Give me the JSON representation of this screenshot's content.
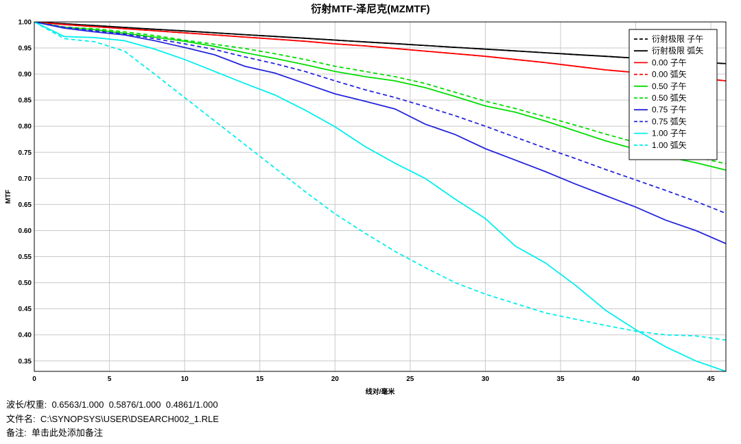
{
  "chart_data": {
    "type": "line",
    "title": "衍射MTF-泽尼克(MZMTF)",
    "xlabel": "线对/毫米",
    "ylabel": "MTF",
    "xlim": [
      0,
      46
    ],
    "ylim": [
      0.33,
      1.0
    ],
    "xticks": [
      0,
      5,
      10,
      15,
      20,
      25,
      30,
      35,
      40,
      45
    ],
    "yticks": [
      1.0,
      0.95,
      0.9,
      0.85,
      0.8,
      0.75,
      0.7,
      0.65,
      0.6,
      0.55,
      0.5,
      0.45,
      0.4,
      0.35
    ],
    "ytick_labels": [
      "1.00",
      "0.95",
      "0.90",
      "0.85",
      "0.80",
      "0.75",
      "0.70",
      "0.65",
      "0.60",
      "0.55",
      "0.50",
      "0.45",
      "0.40",
      "0.35"
    ],
    "grid": true,
    "legend_position": "top-right",
    "x": [
      0,
      2,
      4,
      6,
      8,
      10,
      12,
      14,
      16,
      18,
      20,
      22,
      24,
      26,
      28,
      30,
      32,
      34,
      36,
      38,
      40,
      42,
      44,
      46
    ],
    "series": [
      {
        "name": "衍射极限 子午",
        "color": "#000000",
        "dash": true,
        "values": [
          1.0,
          0.9965,
          0.993,
          0.9895,
          0.986,
          0.9826,
          0.9791,
          0.9756,
          0.9722,
          0.9687,
          0.9652,
          0.9617,
          0.9583,
          0.9548,
          0.9513,
          0.9478,
          0.9444,
          0.9409,
          0.9374,
          0.934,
          0.9305,
          0.927,
          0.9235,
          0.92
        ]
      },
      {
        "name": "衍射极限 弧矢",
        "color": "#000000",
        "dash": false,
        "values": [
          1.0,
          0.9965,
          0.993,
          0.9895,
          0.986,
          0.9826,
          0.9791,
          0.9756,
          0.9722,
          0.9687,
          0.9652,
          0.9617,
          0.9583,
          0.9548,
          0.9513,
          0.9478,
          0.9444,
          0.9409,
          0.9374,
          0.934,
          0.9305,
          0.927,
          0.9235,
          0.92
        ]
      },
      {
        "name": "0.00 子午",
        "color": "#ff0000",
        "dash": false,
        "values": [
          1.0,
          0.995,
          0.991,
          0.987,
          0.983,
          0.979,
          0.975,
          0.971,
          0.967,
          0.963,
          0.958,
          0.954,
          0.949,
          0.944,
          0.939,
          0.934,
          0.928,
          0.922,
          0.915,
          0.908,
          0.903,
          0.898,
          0.893,
          0.887
        ]
      },
      {
        "name": "0.00 弧矢",
        "color": "#ff0000",
        "dash": true,
        "values": [
          1.0,
          0.995,
          0.991,
          0.987,
          0.983,
          0.979,
          0.975,
          0.971,
          0.967,
          0.963,
          0.958,
          0.954,
          0.949,
          0.944,
          0.939,
          0.934,
          0.928,
          0.922,
          0.915,
          0.908,
          0.903,
          0.898,
          0.893,
          0.887
        ]
      },
      {
        "name": "0.50 子午",
        "color": "#00dd00",
        "dash": false,
        "values": [
          1.0,
          0.99,
          0.985,
          0.978,
          0.971,
          0.963,
          0.953,
          0.941,
          0.93,
          0.918,
          0.905,
          0.895,
          0.887,
          0.874,
          0.857,
          0.839,
          0.827,
          0.81,
          0.791,
          0.772,
          0.756,
          0.742,
          0.73,
          0.716
        ]
      },
      {
        "name": "0.50 弧矢",
        "color": "#00dd00",
        "dash": true,
        "values": [
          1.0,
          0.99,
          0.987,
          0.981,
          0.974,
          0.965,
          0.957,
          0.949,
          0.939,
          0.928,
          0.915,
          0.905,
          0.895,
          0.882,
          0.865,
          0.848,
          0.834,
          0.818,
          0.802,
          0.785,
          0.769,
          0.754,
          0.741,
          0.728
        ]
      },
      {
        "name": "0.75 子午",
        "color": "#2424dd",
        "dash": false,
        "values": [
          1.0,
          0.988,
          0.981,
          0.975,
          0.964,
          0.951,
          0.937,
          0.915,
          0.902,
          0.882,
          0.862,
          0.848,
          0.833,
          0.804,
          0.784,
          0.757,
          0.735,
          0.713,
          0.689,
          0.667,
          0.645,
          0.62,
          0.6,
          0.575
        ]
      },
      {
        "name": "0.75 弧矢",
        "color": "#2424dd",
        "dash": true,
        "values": [
          1.0,
          0.99,
          0.983,
          0.977,
          0.968,
          0.958,
          0.947,
          0.933,
          0.92,
          0.905,
          0.887,
          0.87,
          0.855,
          0.838,
          0.82,
          0.8,
          0.779,
          0.758,
          0.738,
          0.717,
          0.697,
          0.677,
          0.656,
          0.633
        ]
      },
      {
        "name": "1.00 子午",
        "color": "#00eeee",
        "dash": false,
        "values": [
          1.0,
          0.972,
          0.97,
          0.964,
          0.948,
          0.928,
          0.905,
          0.882,
          0.86,
          0.831,
          0.799,
          0.761,
          0.729,
          0.7,
          0.66,
          0.623,
          0.57,
          0.538,
          0.495,
          0.447,
          0.41,
          0.377,
          0.35,
          0.33
        ]
      },
      {
        "name": "1.00 弧矢",
        "color": "#00eeee",
        "dash": true,
        "values": [
          1.0,
          0.968,
          0.962,
          0.944,
          0.9,
          0.855,
          0.81,
          0.765,
          0.72,
          0.675,
          0.632,
          0.595,
          0.56,
          0.529,
          0.5,
          0.478,
          0.46,
          0.442,
          0.43,
          0.418,
          0.407,
          0.4,
          0.398,
          0.39
        ]
      }
    ]
  },
  "footer": {
    "wavelength": "波长/权重:  0.6563/1.000  0.5876/1.000  0.4861/1.000",
    "filename": "文件名:  C:\\SYNOPSYS\\USER\\DSEARCH002_1.RLE",
    "note": "备注:  单击此处添加备注"
  }
}
